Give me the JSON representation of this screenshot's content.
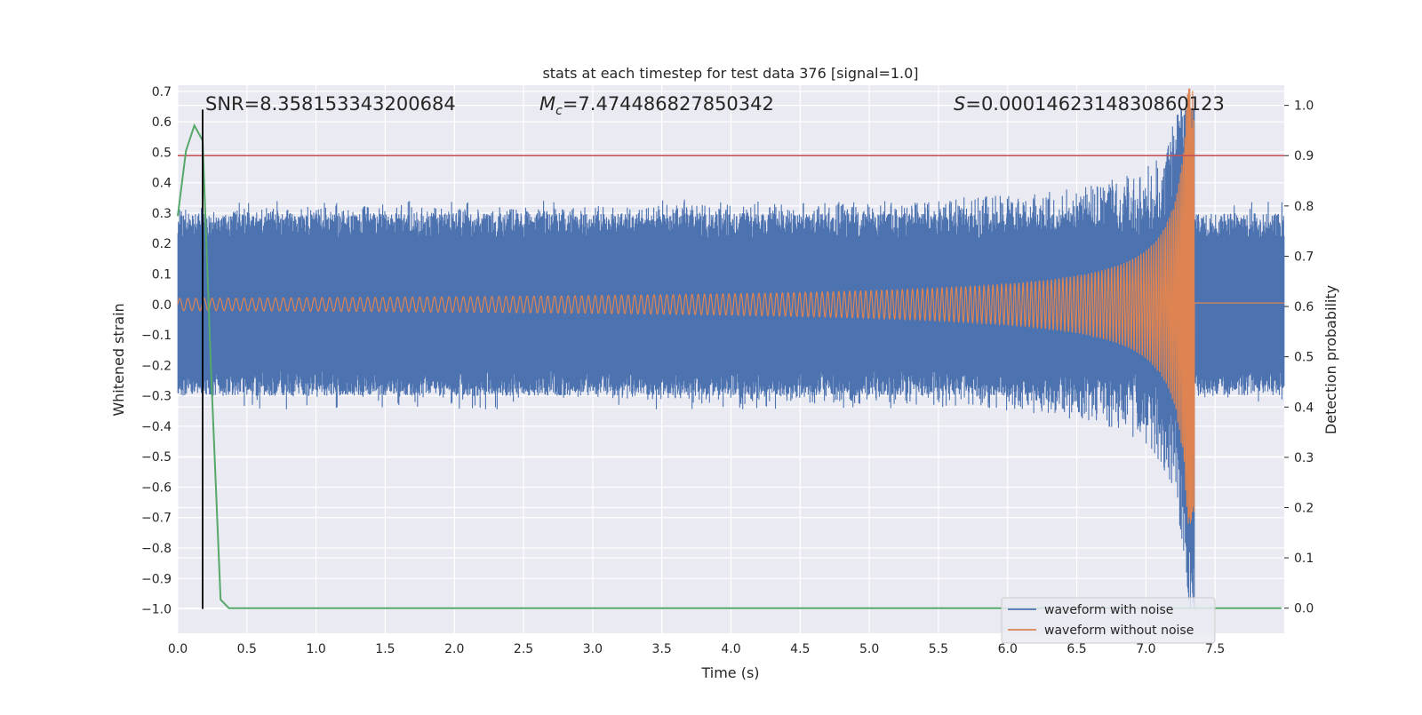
{
  "chart_data": {
    "type": "line",
    "title": "stats at each timestep for test data 376 [signal=1.0]",
    "xlabel": "Time (s)",
    "ylabel": "Whitened strain",
    "y2label": "Detection probability",
    "xlim": [
      0.0,
      8.0
    ],
    "ylim": [
      -1.08,
      0.72
    ],
    "y2lim": [
      -0.05,
      1.04
    ],
    "grid": true,
    "xticks": [
      "0.0",
      "0.5",
      "1.0",
      "1.5",
      "2.0",
      "2.5",
      "3.0",
      "3.5",
      "4.0",
      "4.5",
      "5.0",
      "5.5",
      "6.0",
      "6.5",
      "7.0",
      "7.5"
    ],
    "yticks": [
      "0.7",
      "0.6",
      "0.5",
      "0.4",
      "0.3",
      "0.2",
      "0.1",
      "0.0",
      "−0.1",
      "−0.2",
      "−0.3",
      "−0.4",
      "−0.5",
      "−0.6",
      "−0.7",
      "−0.8",
      "−0.9",
      "−1.0"
    ],
    "y2ticks": [
      "1.0",
      "0.9",
      "0.8",
      "0.7",
      "0.6",
      "0.5",
      "0.4",
      "0.3",
      "0.2",
      "0.1",
      "0.0"
    ],
    "annotations": {
      "snr": "SNR=8.358153343200684",
      "mc_symbol": "M",
      "mc_sub": "c",
      "mc_value": "=7.474486827850342",
      "s_symbol": "S",
      "s_value": "=0.0001462314830860123"
    },
    "series": [
      {
        "name": "waveform with noise",
        "color": "#4c72b0",
        "axis": "left",
        "noise_amplitude": 0.3,
        "min_value": -1.0,
        "max_value": 0.64
      },
      {
        "name": "waveform without noise",
        "color": "#dd8452",
        "axis": "left",
        "merger_time": 7.35,
        "start_amplitude": 0.02,
        "peak_amplitude": 0.72,
        "ringdown_value": 0.005
      },
      {
        "name": "Detection probability",
        "color": "#55a868",
        "axis": "right",
        "x": [
          0.0,
          0.06,
          0.12,
          0.18,
          0.24,
          0.31,
          0.37,
          0.5,
          1.0,
          2.0,
          3.0,
          4.0,
          5.0,
          6.0,
          7.0,
          7.5,
          8.0
        ],
        "values": [
          0.78,
          0.91,
          0.96,
          0.93,
          0.48,
          0.017,
          0.0,
          0.0,
          0.0,
          0.0,
          0.0,
          0.0,
          0.0,
          0.0,
          0.0,
          0.0,
          0.0
        ]
      }
    ],
    "threshold": {
      "axis": "right",
      "value": 0.9,
      "color": "#c44e52"
    },
    "marker_line": {
      "x": 0.18,
      "y_from": -1.0,
      "y_to": 0.64,
      "color": "#000000"
    },
    "legend": {
      "position": "lower-right",
      "entries": [
        "waveform with noise",
        "waveform without noise"
      ]
    }
  }
}
